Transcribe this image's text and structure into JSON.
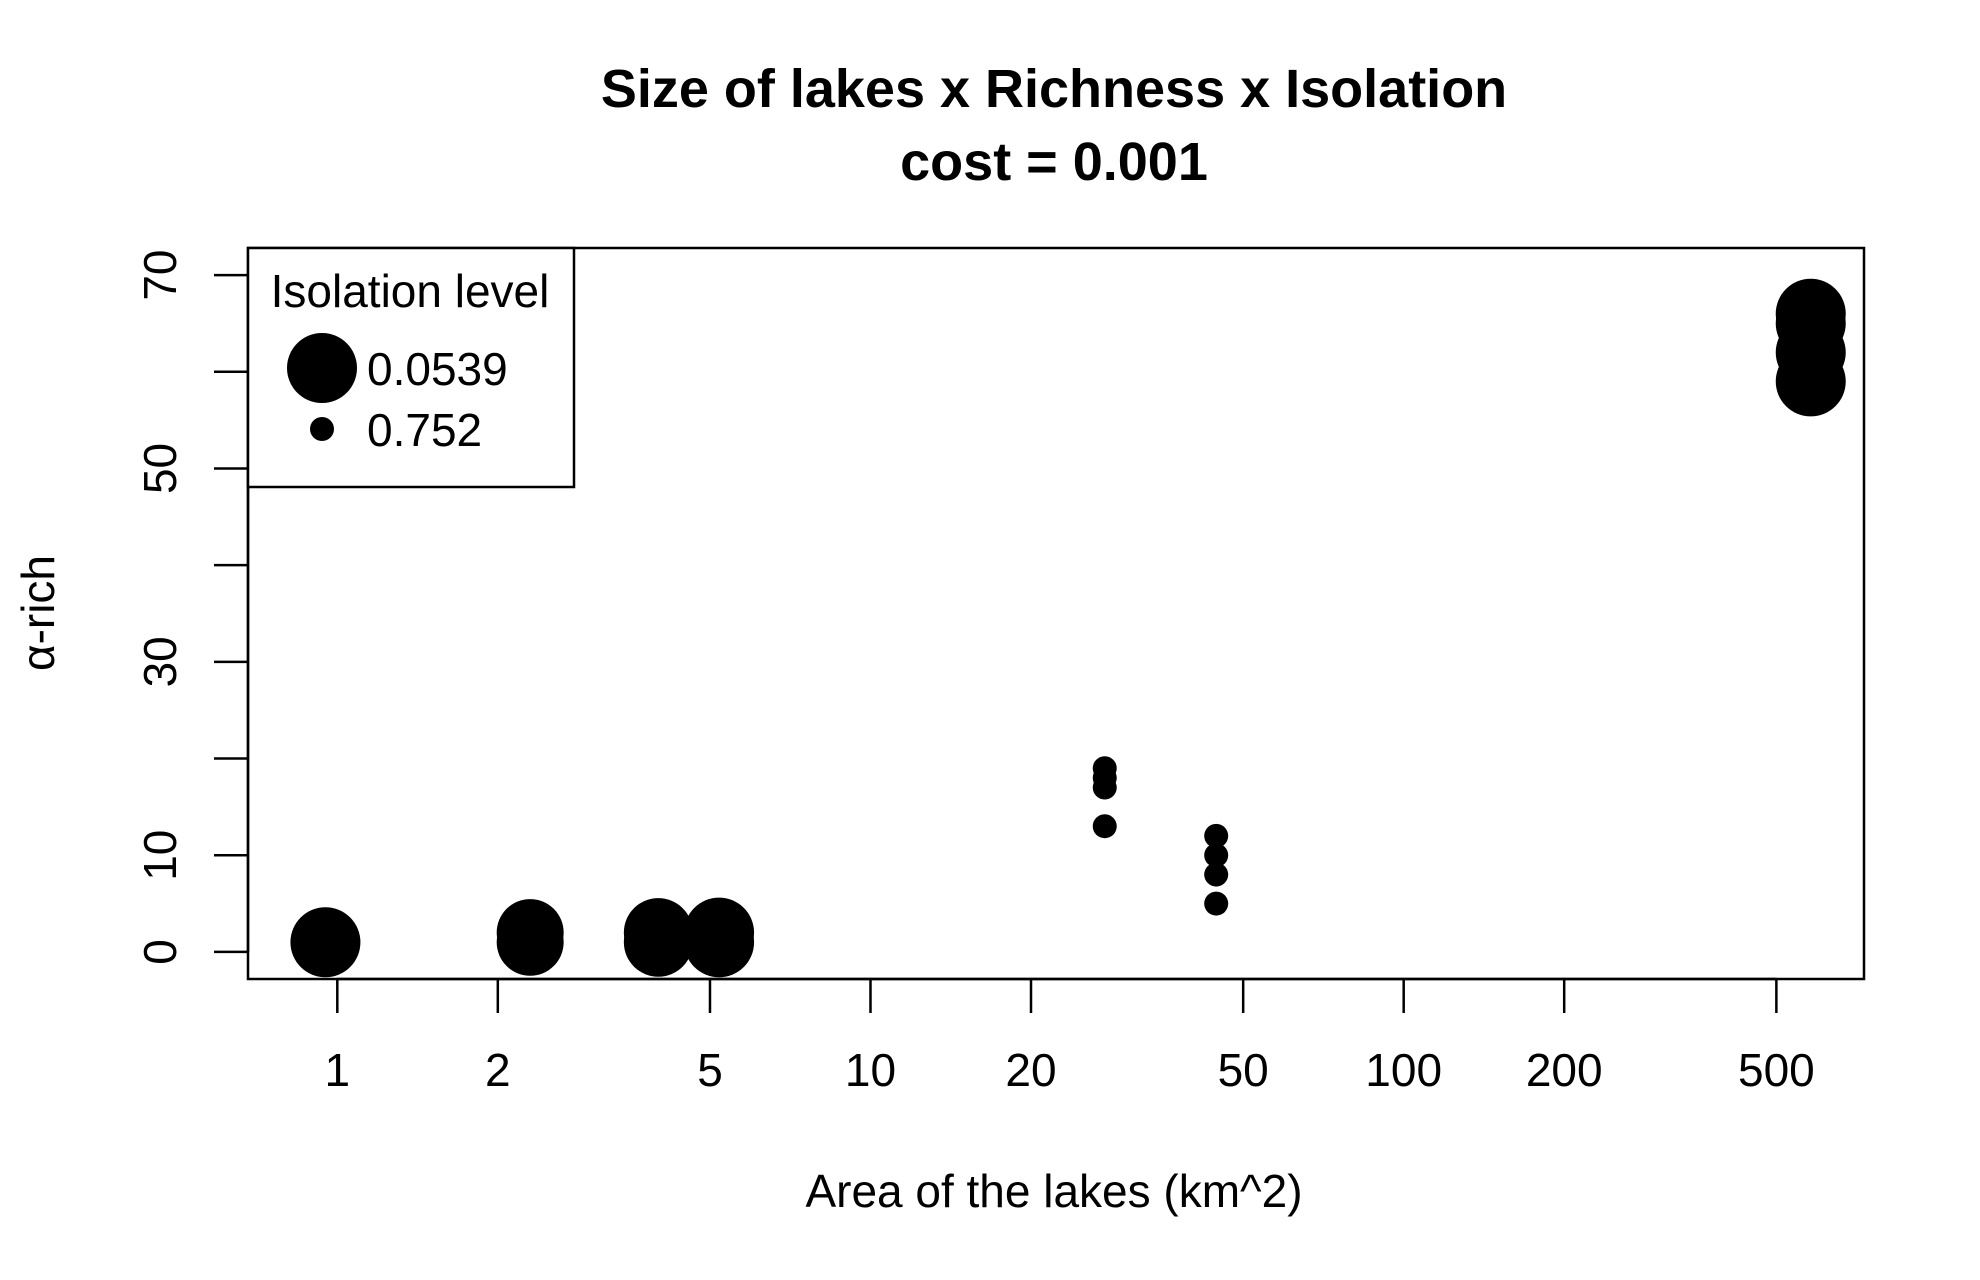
{
  "chart_data": {
    "type": "scatter",
    "title": "Size of lakes x Richness x Isolation",
    "subtitle": "cost = 0.001",
    "xlabel": "Area of the lakes (km^2)",
    "ylabel": "α-rich",
    "x_scale": "log",
    "xlim": [
      0.68,
      730
    ],
    "ylim": [
      -2.8,
      72.8
    ],
    "x_ticks": [
      1,
      2,
      5,
      10,
      20,
      50,
      100,
      200,
      500
    ],
    "x_tick_labels": [
      "1",
      "2",
      "5",
      "10",
      "20",
      "50",
      "100",
      "200",
      "500"
    ],
    "y_ticks": [
      0,
      10,
      20,
      30,
      40,
      50,
      60,
      70
    ],
    "y_tick_labels": [
      "0",
      "10",
      "",
      "30",
      "",
      "50",
      "",
      "70"
    ],
    "grid": false,
    "legend": {
      "title": "Isolation level",
      "position": "top-left",
      "entries": [
        {
          "label": "0.0539",
          "isolation": 0.0539
        },
        {
          "label": "0.752",
          "isolation": 0.752
        }
      ]
    },
    "points": [
      {
        "x": 0.95,
        "y": 1,
        "isolation": 0.0539
      },
      {
        "x": 2.3,
        "y": 1,
        "isolation": 0.1
      },
      {
        "x": 2.3,
        "y": 2,
        "isolation": 0.1
      },
      {
        "x": 4,
        "y": 1,
        "isolation": 0.07
      },
      {
        "x": 4,
        "y": 2,
        "isolation": 0.07
      },
      {
        "x": 5.2,
        "y": 1,
        "isolation": 0.0539
      },
      {
        "x": 5.2,
        "y": 2,
        "isolation": 0.0539
      },
      {
        "x": 27.5,
        "y": 13,
        "isolation": 0.752
      },
      {
        "x": 27.5,
        "y": 17,
        "isolation": 0.752
      },
      {
        "x": 27.5,
        "y": 18,
        "isolation": 0.752
      },
      {
        "x": 27.5,
        "y": 19,
        "isolation": 0.752
      },
      {
        "x": 44.5,
        "y": 5,
        "isolation": 0.752
      },
      {
        "x": 44.5,
        "y": 8,
        "isolation": 0.752
      },
      {
        "x": 44.5,
        "y": 10,
        "isolation": 0.752
      },
      {
        "x": 44.5,
        "y": 12,
        "isolation": 0.752
      },
      {
        "x": 580,
        "y": 59,
        "isolation": 0.0539
      },
      {
        "x": 580,
        "y": 62,
        "isolation": 0.0539
      },
      {
        "x": 580,
        "y": 65,
        "isolation": 0.0539
      },
      {
        "x": 580,
        "y": 66,
        "isolation": 0.0539
      }
    ]
  }
}
